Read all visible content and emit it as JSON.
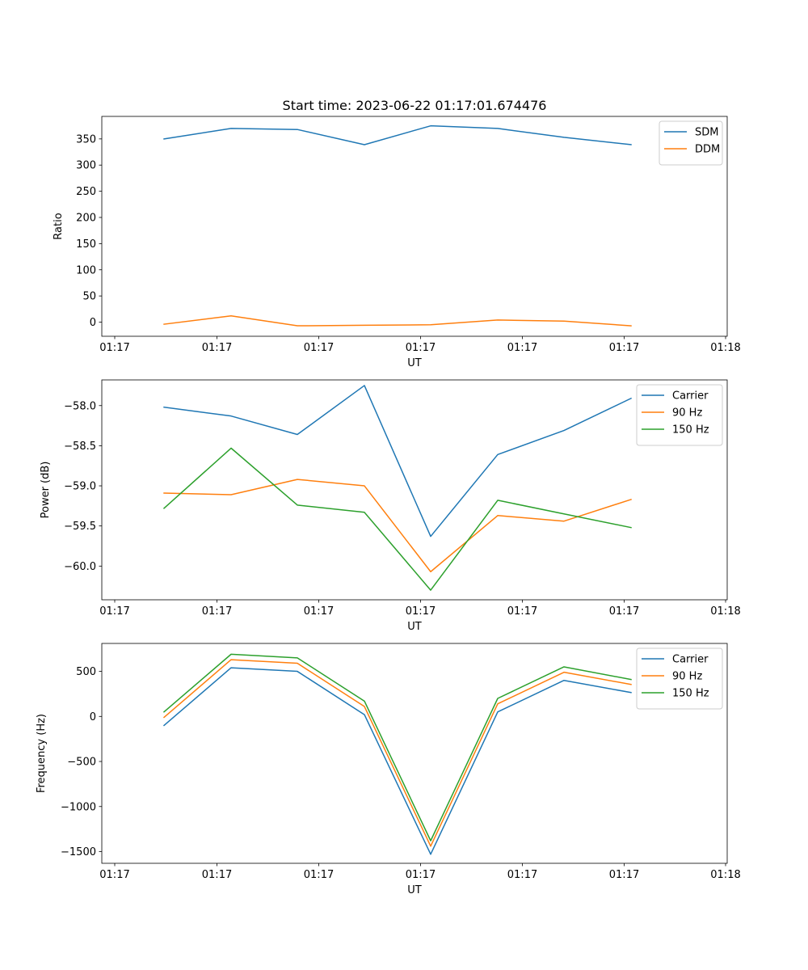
{
  "figure_title": "Start time: 2023-06-22 01:17:01.674476",
  "x_tick_labels": [
    "01:17",
    "01:17",
    "01:17",
    "01:17",
    "01:17",
    "01:17",
    "01:18"
  ],
  "chart_data": [
    {
      "type": "line",
      "title": "Start time: 2023-06-22 01:17:01.674476",
      "xlabel": "UT",
      "ylabel": "Ratio",
      "x_index": [
        0,
        1,
        2,
        3,
        4,
        5,
        6,
        7
      ],
      "ylim": [
        -27,
        393
      ],
      "yticks": [
        0,
        50,
        100,
        150,
        200,
        250,
        300,
        350
      ],
      "ytick_labels": [
        "0",
        "50",
        "100",
        "150",
        "200",
        "250",
        "300",
        "350"
      ],
      "grid": false,
      "legend_position": "upper right",
      "series": [
        {
          "name": "SDM",
          "color": "#1f77b4",
          "values": [
            350,
            370,
            368,
            339,
            375,
            370,
            353,
            339
          ]
        },
        {
          "name": "DDM",
          "color": "#ff7f0e",
          "values": [
            -4,
            12,
            -7,
            -6,
            -5,
            4,
            2,
            -7
          ]
        }
      ]
    },
    {
      "type": "line",
      "xlabel": "UT",
      "ylabel": "Power (dB)",
      "x_index": [
        0,
        1,
        2,
        3,
        4,
        5,
        6,
        7
      ],
      "ylim": [
        -60.42,
        -57.68
      ],
      "yticks": [
        -60.0,
        -59.5,
        -59.0,
        -58.5,
        -58.0
      ],
      "ytick_labels": [
        "−60.0",
        "−59.5",
        "−59.0",
        "−58.5",
        "−58.0"
      ],
      "grid": false,
      "legend_position": "upper right",
      "series": [
        {
          "name": "Carrier",
          "color": "#1f77b4",
          "values": [
            -58.02,
            -58.13,
            -58.36,
            -57.75,
            -59.63,
            -58.61,
            -58.31,
            -57.91
          ]
        },
        {
          "name": "90 Hz",
          "color": "#ff7f0e",
          "values": [
            -59.09,
            -59.11,
            -58.92,
            -59.0,
            -60.07,
            -59.37,
            -59.44,
            -59.17
          ]
        },
        {
          "name": "150 Hz",
          "color": "#2ca02c",
          "values": [
            -59.28,
            -58.53,
            -59.24,
            -59.33,
            -60.3,
            -59.18,
            -59.35,
            -59.52
          ]
        }
      ]
    },
    {
      "type": "line",
      "xlabel": "UT",
      "ylabel": "Frequency (Hz)",
      "x_index": [
        0,
        1,
        2,
        3,
        4,
        5,
        6,
        7
      ],
      "ylim": [
        -1630,
        810
      ],
      "yticks": [
        -1500,
        -1000,
        -500,
        0,
        500
      ],
      "ytick_labels": [
        "−1500",
        "−1000",
        "−500",
        "0",
        "500"
      ],
      "grid": false,
      "legend_position": "upper right",
      "series": [
        {
          "name": "Carrier",
          "color": "#1f77b4",
          "values": [
            -100,
            540,
            500,
            20,
            -1530,
            50,
            400,
            265
          ]
        },
        {
          "name": "90 Hz",
          "color": "#ff7f0e",
          "values": [
            -10,
            630,
            590,
            110,
            -1440,
            140,
            490,
            355
          ]
        },
        {
          "name": "150 Hz",
          "color": "#2ca02c",
          "values": [
            50,
            690,
            650,
            170,
            -1380,
            200,
            550,
            410
          ]
        }
      ]
    }
  ]
}
